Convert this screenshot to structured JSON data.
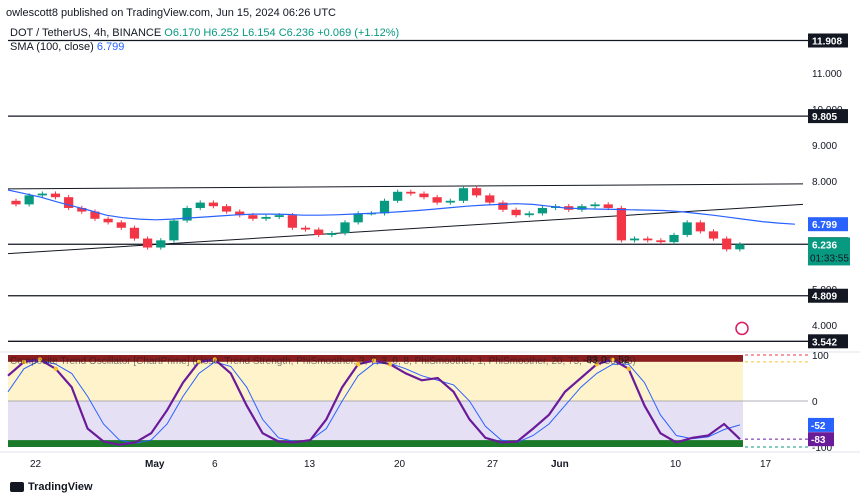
{
  "header": {
    "published": "owlescott8 published on TradingView.com, Jun 15, 2024 06:26 UTC"
  },
  "symbol": {
    "pair": "DOT / TetherUS, 4h, BINANCE",
    "open": "O6.170",
    "high": "H6.252",
    "low": "L6.154",
    "close": "C6.236",
    "change": "+0.069 (+1.12%)"
  },
  "sma": {
    "label": "SMA (100, close)",
    "value": "6.799"
  },
  "indicator_title": "Composite Trend Oscillator [ChartPrime] (close, Trend Strength, PhiSmoother, 3, 7, 3, 0, 8, PhiSmoother, 1, PhiSmoother, 20, 75, -75, 50, 85)",
  "footer": {
    "brand": "TradingView"
  },
  "colors": {
    "up": "#089981",
    "down": "#f23645",
    "sma": "#2962ff",
    "price_label": "#089981",
    "osc_yellow": "#fbc02d",
    "osc_purple": "#6a1b9a",
    "osc_blue": "#2962ff",
    "band_red": "#8b1e1e",
    "band_green": "#1b7a2a"
  },
  "chart_data": {
    "type": "line",
    "series": [
      {
        "name": "",
        "values": [
          7.35,
          7.6,
          7.65,
          7.55,
          7.25,
          7.15,
          6.95,
          6.85,
          6.7,
          6.4,
          6.15,
          6.35,
          6.9,
          7.25,
          7.4,
          7.3,
          7.15,
          7.05,
          6.95,
          7.0,
          7.05,
          6.7,
          6.65,
          6.5,
          6.55,
          6.85,
          7.1,
          7.1,
          7.45,
          7.7,
          7.65,
          7.55,
          7.4,
          7.45,
          7.8,
          7.6,
          7.4,
          7.2,
          7.05,
          7.1,
          7.25,
          7.3,
          7.2,
          7.3,
          7.35,
          7.25,
          6.35,
          6.4,
          6.35,
          6.3,
          6.5,
          6.85,
          6.6,
          6.4,
          6.1,
          6.24
        ]
      },
      {
        "name": "SMA (100, close)",
        "values": [
          7.75,
          7.65,
          7.55,
          7.42,
          7.3,
          7.18,
          7.05,
          6.98,
          6.94,
          6.92,
          6.94,
          6.97,
          7.0,
          7.03,
          7.06,
          7.08,
          7.08,
          7.07,
          7.05,
          7.05,
          7.06,
          7.08,
          7.1,
          7.12,
          7.15,
          7.18,
          7.22,
          7.26,
          7.3,
          7.33,
          7.35,
          7.37,
          7.35,
          7.3,
          7.25,
          7.23,
          7.22,
          7.21,
          7.2,
          7.19,
          7.18,
          7.15,
          7.1,
          7.05,
          6.99,
          6.93,
          6.87,
          6.83,
          6.8
        ]
      },
      {
        "name": "",
        "values": [
          6,
          1000
        ]
      },
      {
        "name": "",
        "values": [
          55,
          85,
          90,
          70,
          30,
          -60,
          -88,
          -95,
          -90,
          -70,
          -20,
          40,
          85,
          90,
          60,
          -10,
          -70,
          -88,
          -90,
          -85,
          -40,
          30,
          80,
          88,
          80,
          60,
          45,
          50,
          20,
          -40,
          -80,
          -90,
          -88,
          -60,
          -30,
          20,
          50,
          80,
          90,
          70,
          -10,
          -70,
          -90,
          -80,
          -75,
          -50,
          -83
        ]
      },
      {
        "name": "",
        "values": [
          20,
          70,
          88,
          80,
          60,
          10,
          -50,
          -85,
          -92,
          -85,
          -50,
          10,
          60,
          85,
          75,
          30,
          -40,
          -80,
          -88,
          -85,
          -60,
          0,
          55,
          82,
          82,
          70,
          55,
          45,
          35,
          0,
          -55,
          -85,
          -90,
          -75,
          -50,
          -10,
          30,
          60,
          80,
          80,
          40,
          -30,
          -75,
          -82,
          -78,
          -62,
          -52
        ]
      }
    ],
    "price_axis": {
      "ticks": [
        "11.000",
        "10.000",
        "9.000",
        "8.000",
        "5.000",
        "4.000"
      ],
      "levels": [
        {
          "value": 11.908,
          "label": "11.908"
        },
        {
          "value": 9.805,
          "label": "9.805"
        },
        {
          "value": 6.242,
          "label": "6.242"
        },
        {
          "value": 4.809,
          "label": "4.809"
        },
        {
          "value": 3.542,
          "label": "3.542"
        }
      ],
      "sma_label": "6.799",
      "price_label": "6.236",
      "countdown": "01:33:55",
      "ylim": [
        3.3,
        12.2
      ]
    },
    "x_axis": {
      "ticks": [
        "22",
        "May",
        "6",
        "13",
        "20",
        "27",
        "Jun",
        "10",
        "17"
      ]
    },
    "oscillator": {
      "ylim": [
        -100,
        100
      ],
      "ticks": [
        "100",
        "0",
        "-100"
      ],
      "labels": [
        "-52",
        "-83"
      ],
      "overlay_values": [
        "-83",
        "0",
        "-52"
      ]
    },
    "trendlines": [
      {
        "from": [
          0,
          7.78
        ],
        "to": [
          1,
          7.92
        ]
      },
      {
        "from": [
          0,
          5.98
        ],
        "to": [
          1,
          7.35
        ]
      }
    ]
  }
}
